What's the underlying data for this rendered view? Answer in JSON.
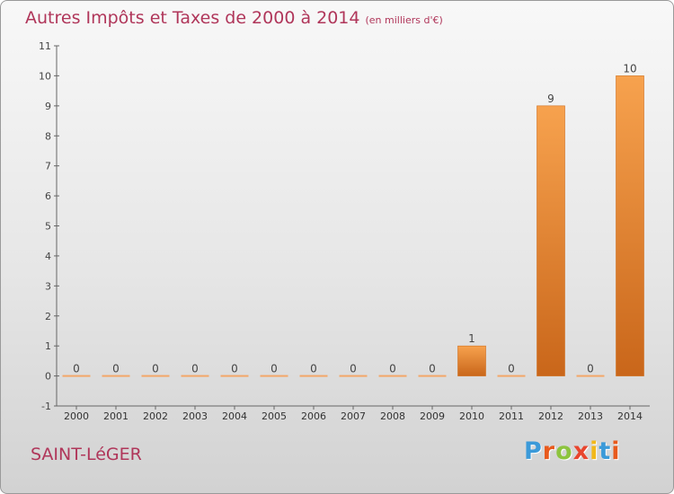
{
  "title": "Autres Impôts et Taxes de 2000 à 2014",
  "subtitle": "(en milliers d'€)",
  "commune": "SAINT-LéGER",
  "logo": {
    "letters": [
      "P",
      "r",
      "o",
      "x",
      "i",
      "t",
      "i"
    ],
    "colors": [
      "#3b9ad9",
      "#e85a1d",
      "#8dc43f",
      "#e8462e",
      "#f2b81b",
      "#3b9ad9",
      "#e85a1d"
    ]
  },
  "chart_data": {
    "type": "bar",
    "categories": [
      "2000",
      "2001",
      "2002",
      "2003",
      "2004",
      "2005",
      "2006",
      "2007",
      "2008",
      "2009",
      "2010",
      "2011",
      "2012",
      "2013",
      "2014"
    ],
    "values": [
      0,
      0,
      0,
      0,
      0,
      0,
      0,
      0,
      0,
      0,
      1,
      0,
      9,
      0,
      10
    ],
    "data_labels": [
      "0",
      "0",
      "0",
      "0",
      "0",
      "0",
      "0",
      "0",
      "0",
      "0",
      "1",
      "0",
      "9",
      "0",
      "10"
    ],
    "ylim": [
      -1,
      11
    ],
    "yticks": [
      "-1",
      "0",
      "1",
      "2",
      "3",
      "4",
      "5",
      "6",
      "7",
      "8",
      "9",
      "10",
      "11"
    ],
    "ytick_values": [
      -1,
      0,
      1,
      2,
      3,
      4,
      5,
      6,
      7,
      8,
      9,
      10,
      11
    ],
    "grid": false,
    "bar_color": "#f0892f",
    "xlabel": "",
    "ylabel": ""
  }
}
